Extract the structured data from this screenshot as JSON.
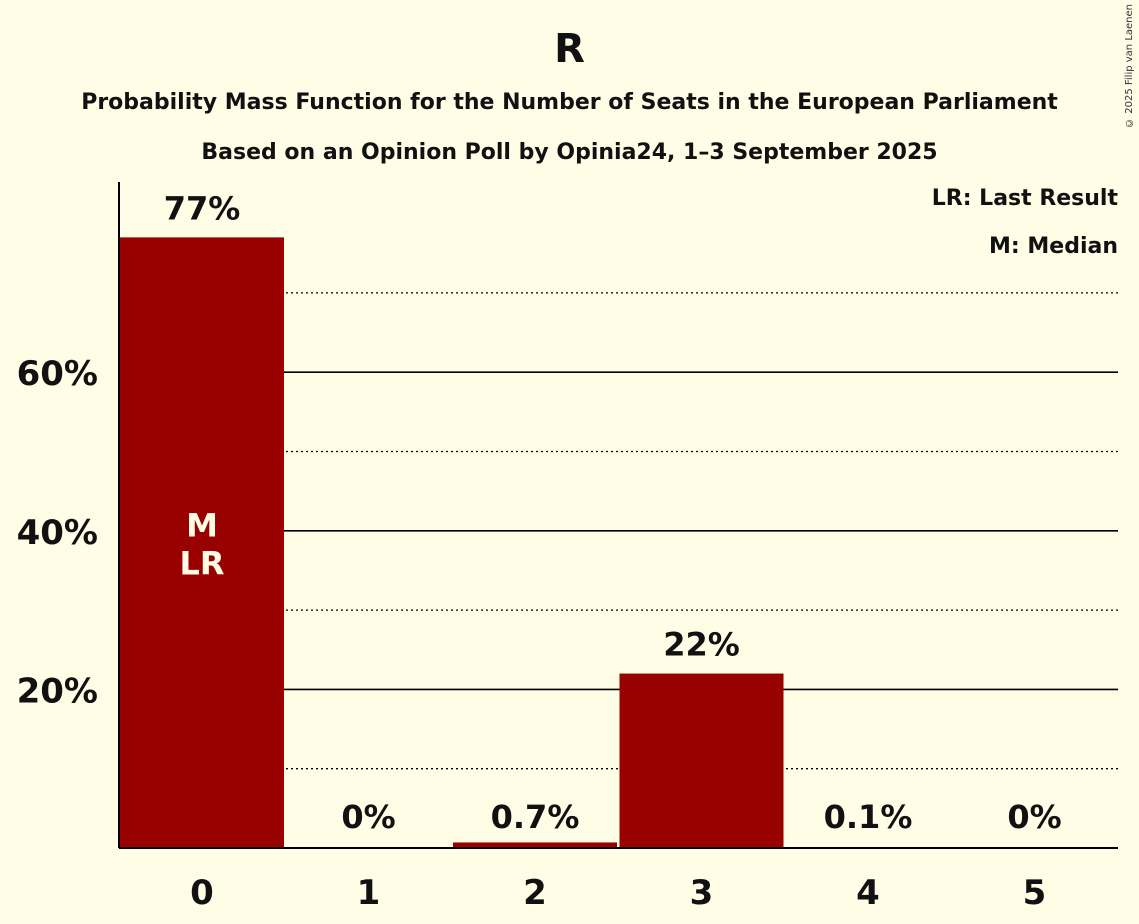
{
  "title": "R",
  "subtitle": "Probability Mass Function for the Number of Seats in the European Parliament",
  "subtitle2": "Based on an Opinion Poll by Opinia24, 1–3 September 2025",
  "copyright": "© 2025 Filip van Laenen",
  "legend": {
    "last_result": "LR: Last Result",
    "median": "M: Median"
  },
  "colors": {
    "bar": "#990000",
    "background": "#FFFDE6"
  },
  "chart_data": {
    "type": "bar",
    "categories": [
      "0",
      "1",
      "2",
      "3",
      "4",
      "5"
    ],
    "values": [
      77,
      0,
      0.7,
      22,
      0.1,
      0
    ],
    "value_labels": [
      "77%",
      "0%",
      "0.7%",
      "22%",
      "0.1%",
      "0%"
    ],
    "bar_annotations": [
      [
        "M",
        "LR"
      ],
      [],
      [],
      [],
      [],
      []
    ],
    "y_ticks": [
      20,
      40,
      60
    ],
    "y_tick_labels": [
      "20%",
      "40%",
      "60%"
    ],
    "y_minor_ticks": [
      10,
      30,
      50,
      70
    ],
    "ylim": [
      0,
      84
    ],
    "grid": true,
    "legend_position": "top-right"
  }
}
